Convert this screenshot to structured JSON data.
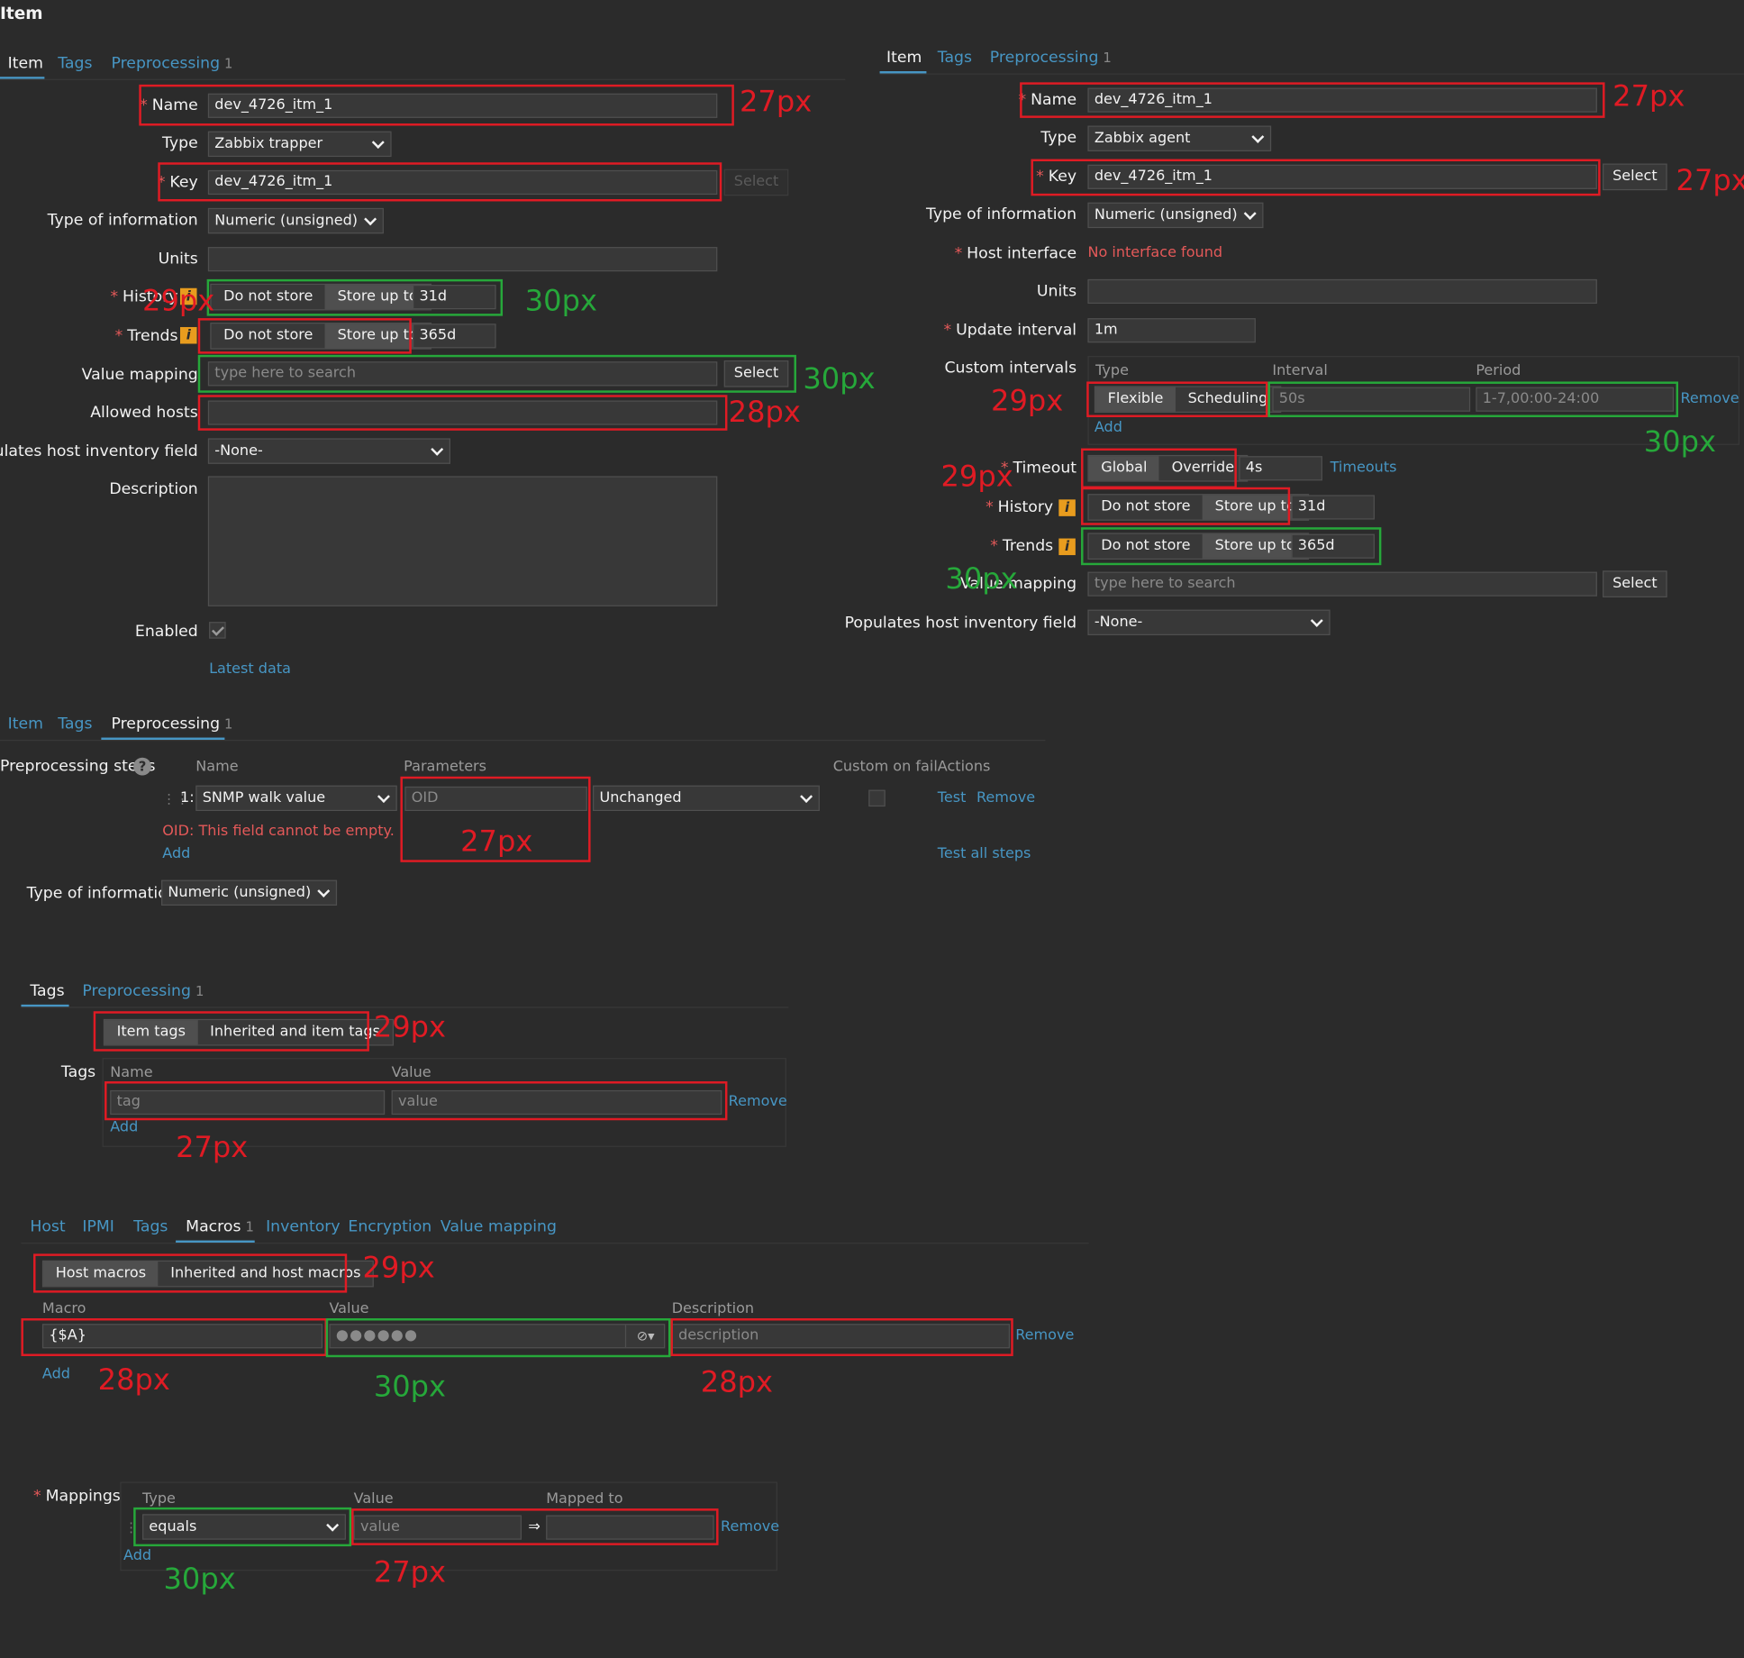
{
  "page_title": "Item",
  "left_item": {
    "tabs": [
      {
        "label": "Item"
      },
      {
        "label": "Tags"
      },
      {
        "label": "Preprocessing",
        "count": "1"
      }
    ],
    "name": {
      "label": "Name",
      "value": "dev_4726_itm_1"
    },
    "type": {
      "label": "Type",
      "value": "Zabbix trapper"
    },
    "key": {
      "label": "Key",
      "value": "dev_4726_itm_1",
      "select": "Select"
    },
    "type_of_info": {
      "label": "Type of information",
      "value": "Numeric (unsigned)"
    },
    "units": {
      "label": "Units"
    },
    "history": {
      "label": "History",
      "opt1": "Do not store",
      "opt2": "Store up to",
      "value": "31d"
    },
    "trends": {
      "label": "Trends",
      "opt1": "Do not store",
      "opt2": "Store up to",
      "value": "365d"
    },
    "value_mapping": {
      "label": "Value mapping",
      "placeholder": "type here to search",
      "select": "Select"
    },
    "allowed_hosts": {
      "label": "Allowed hosts"
    },
    "inventory": {
      "label": "Populates host inventory field",
      "value": "-None-"
    },
    "description": {
      "label": "Description"
    },
    "enabled": {
      "label": "Enabled"
    },
    "latest_data": "Latest data"
  },
  "right_item": {
    "tabs": [
      {
        "label": "Item"
      },
      {
        "label": "Tags"
      },
      {
        "label": "Preprocessing",
        "count": "1"
      }
    ],
    "name": {
      "label": "Name",
      "value": "dev_4726_itm_1"
    },
    "type": {
      "label": "Type",
      "value": "Zabbix agent"
    },
    "key": {
      "label": "Key",
      "value": "dev_4726_itm_1",
      "select": "Select"
    },
    "type_of_info": {
      "label": "Type of information",
      "value": "Numeric (unsigned)"
    },
    "host_interface": {
      "label": "Host interface",
      "value": "No interface found"
    },
    "units": {
      "label": "Units"
    },
    "update_interval": {
      "label": "Update interval",
      "value": "1m"
    },
    "custom_intervals": {
      "label": "Custom intervals",
      "col_type": "Type",
      "col_interval": "Interval",
      "col_period": "Period",
      "opt1": "Flexible",
      "opt2": "Scheduling",
      "interval": "50s",
      "period": "1-7,00:00-24:00",
      "remove": "Remove",
      "add": "Add"
    },
    "timeout": {
      "label": "Timeout",
      "opt1": "Global",
      "opt2": "Override",
      "value": "4s",
      "link": "Timeouts"
    },
    "history": {
      "label": "History",
      "opt1": "Do not store",
      "opt2": "Store up to",
      "value": "31d"
    },
    "trends": {
      "label": "Trends",
      "opt1": "Do not store",
      "opt2": "Store up to",
      "value": "365d"
    },
    "value_mapping": {
      "label": "Value mapping",
      "placeholder": "type here to search",
      "select": "Select"
    },
    "inventory": {
      "label": "Populates host inventory field",
      "value": "-None-"
    }
  },
  "preprocessing": {
    "tabs": [
      {
        "label": "Item"
      },
      {
        "label": "Tags"
      },
      {
        "label": "Preprocessing",
        "count": "1"
      }
    ],
    "steps_label": "Preprocessing steps",
    "col_name": "Name",
    "col_params": "Parameters",
    "col_custom": "Custom on fail",
    "col_actions": "Actions",
    "step_num": "1:",
    "step_name": "SNMP walk value",
    "param_placeholder": "OID",
    "param_select": "Unchanged",
    "test": "Test",
    "remove": "Remove",
    "error": "OID: This field cannot be empty.",
    "add": "Add",
    "test_all": "Test all steps",
    "type_of_info": {
      "label": "Type of information",
      "value": "Numeric (unsigned)"
    }
  },
  "tags_section": {
    "tabs": [
      {
        "label": "Tags"
      },
      {
        "label": "Preprocessing",
        "count": "1"
      }
    ],
    "opt1": "Item tags",
    "opt2": "Inherited and item tags",
    "label": "Tags",
    "col_name": "Name",
    "col_value": "Value",
    "tag_placeholder": "tag",
    "value_placeholder": "value",
    "remove": "Remove",
    "add": "Add"
  },
  "macros_section": {
    "tabs": [
      {
        "label": "Host"
      },
      {
        "label": "IPMI"
      },
      {
        "label": "Tags"
      },
      {
        "label": "Macros",
        "count": "1"
      },
      {
        "label": "Inventory"
      },
      {
        "label": "Encryption"
      },
      {
        "label": "Value mapping"
      }
    ],
    "opt1": "Host macros",
    "opt2": "Inherited and host macros",
    "col_macro": "Macro",
    "col_value": "Value",
    "col_desc": "Description",
    "macro": "{$A}",
    "masked_value": "●●●●●●",
    "desc_placeholder": "description",
    "remove": "Remove",
    "add": "Add"
  },
  "mappings_section": {
    "label": "Mappings",
    "col_type": "Type",
    "col_value": "Value",
    "col_mapped": "Mapped to",
    "type_value": "equals",
    "value_placeholder": "value",
    "arrow": "⇒",
    "remove": "Remove",
    "add": "Add"
  },
  "annotations": {
    "a1": "27px",
    "a2": "30px",
    "a3": "29px",
    "a4": "30px",
    "a5": "28px",
    "b1": "27px",
    "b2": "27px",
    "b3": "29px",
    "b4": "30px",
    "b5": "29px",
    "b6": "30px",
    "c1": "27px",
    "d1": "29px",
    "d2": "27px",
    "e1": "29px",
    "e2": "28px",
    "e3": "30px",
    "e4": "28px",
    "f1": "30px",
    "f2": "27px"
  },
  "colors": {
    "background": "#2b2b2b",
    "link": "#4796c4",
    "error": "#e45959",
    "annotation_red": "#e01b24",
    "annotation_green": "#26a83a",
    "info": "#e89c1e"
  }
}
